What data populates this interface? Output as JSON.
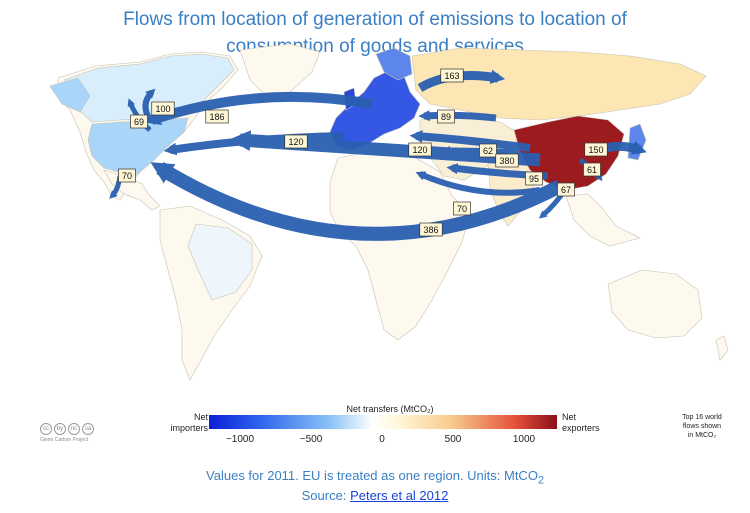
{
  "title": {
    "line1": "Flows from location of generation of emissions to location of",
    "line2": "consumption of goods and services"
  },
  "flows": [
    {
      "id": "f163",
      "value": "163"
    },
    {
      "id": "f100",
      "value": "100"
    },
    {
      "id": "f69",
      "value": "69"
    },
    {
      "id": "f186",
      "value": "186"
    },
    {
      "id": "f89",
      "value": "89"
    },
    {
      "id": "f120a",
      "value": "120"
    },
    {
      "id": "f120b",
      "value": "120"
    },
    {
      "id": "f62",
      "value": "62"
    },
    {
      "id": "f150",
      "value": "150"
    },
    {
      "id": "f380",
      "value": "380"
    },
    {
      "id": "f61",
      "value": "61"
    },
    {
      "id": "f95",
      "value": "95"
    },
    {
      "id": "f67",
      "value": "67"
    },
    {
      "id": "f70a",
      "value": "70"
    },
    {
      "id": "f70b",
      "value": "70"
    },
    {
      "id": "f386",
      "value": "386"
    }
  ],
  "colorbar": {
    "title": "Net transfers (MtCO₂)",
    "ticks": [
      "−1000",
      "−500",
      "0",
      "500",
      "1000"
    ],
    "left_label_1": "Net",
    "left_label_2": "importers",
    "right_label_1": "Net",
    "right_label_2": "exporters",
    "colors": {
      "importer_strong": "#0b1fd6",
      "importer_mid": "#8cc4f6",
      "neutral": "#fdf9ee",
      "exporter_mid": "#f7c98a",
      "exporter_strong": "#8c0e1a"
    }
  },
  "note": {
    "line1": "Top 16 world",
    "line2": "flows shown",
    "line3": "in MtCO₂"
  },
  "license": {
    "icons": [
      "cc",
      "by",
      "nc",
      "sa"
    ],
    "text": "Glenn Carbon Project"
  },
  "footer": {
    "text": "Values for 2011. EU is treated as one region. Units: MtCO",
    "sub": "2",
    "source_prefix": "Source: ",
    "source_link": "Peters et al 2012"
  },
  "map_colors": {
    "land": "#fdf9ee",
    "usa": "#a9d6f8",
    "canada": "#d9eefc",
    "eu": "#3558e4",
    "china": "#9c1b1e",
    "russia": "#fbe6b4",
    "arrow": "#2a5fb0"
  }
}
